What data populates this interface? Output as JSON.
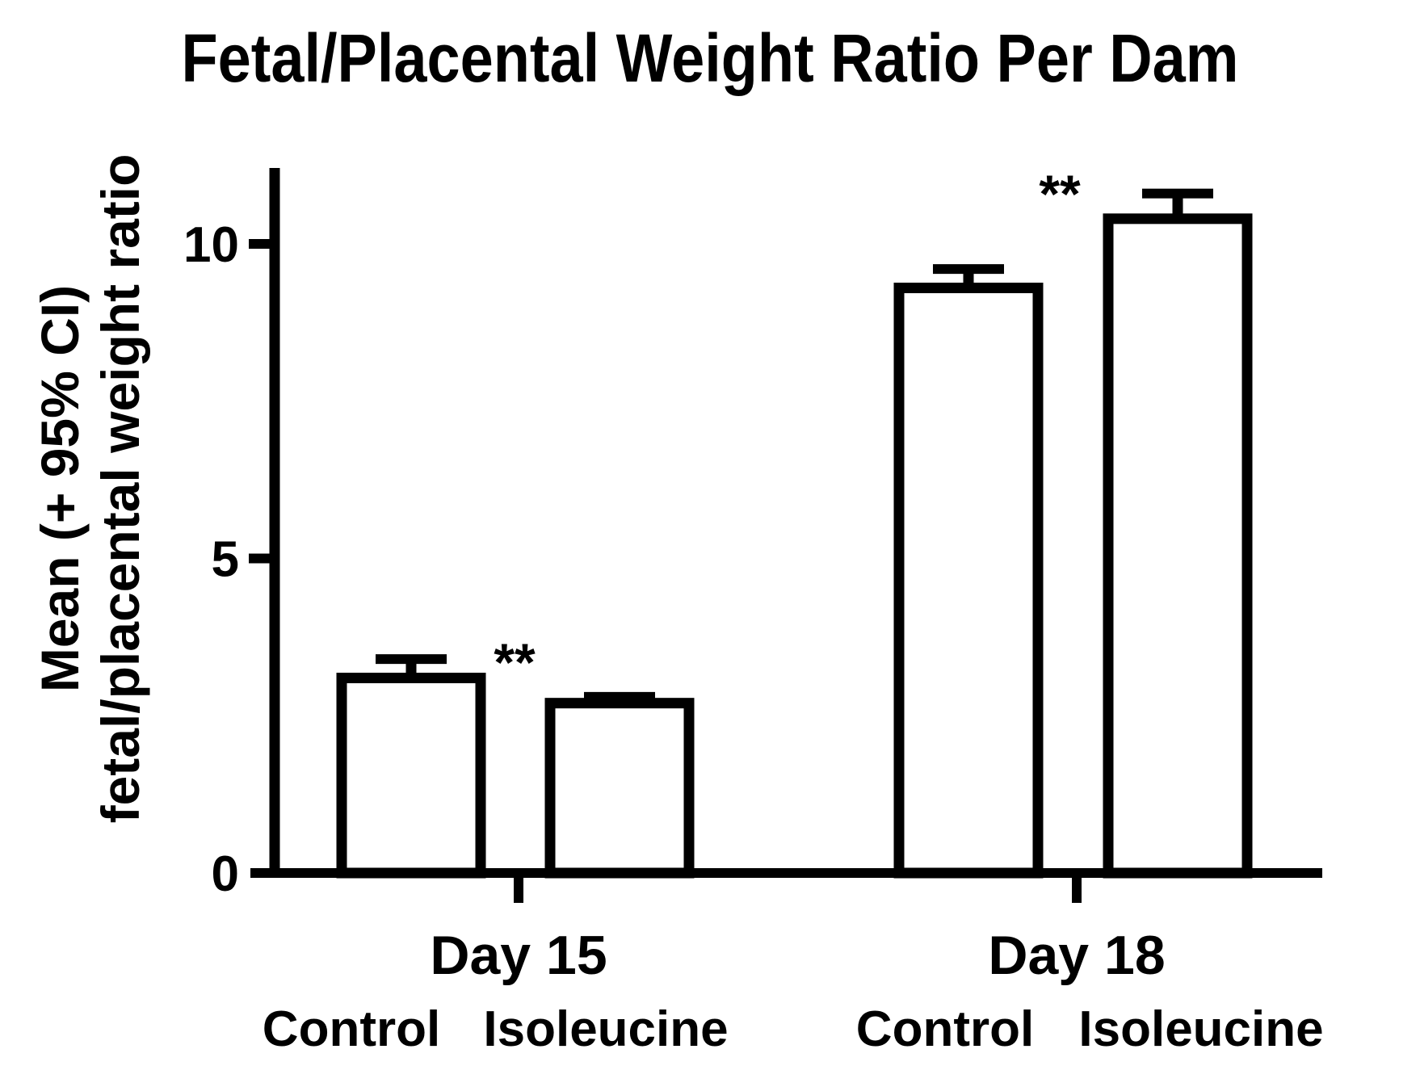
{
  "figure": {
    "title": "Fetal/Placental Weight Ratio Per Dam"
  },
  "y_axis": {
    "label_line1": "Mean (+ 95% CI)",
    "label_line2": "fetal/placental weight ratio"
  },
  "chart_data": {
    "type": "bar",
    "title": "Fetal/Placental Weight Ratio Per Dam",
    "ylabel": "Mean (+ 95% CI) fetal/placental weight ratio",
    "xlabel": "",
    "ylim": [
      0,
      11.2
    ],
    "yticks": [
      0,
      5,
      10
    ],
    "grid": false,
    "legend": "none",
    "bar_fill": "#ffffff",
    "line_color": "#000000",
    "error_bars": "upper 95% CI only, with cap",
    "groups": [
      {
        "label": "Day 15",
        "significance": "**",
        "bars": [
          {
            "label": "Control",
            "mean": 3.1,
            "upper_ci": 3.4
          },
          {
            "label": "Isoleucine",
            "mean": 2.7,
            "upper_ci": 2.8
          }
        ]
      },
      {
        "label": "Day 18",
        "significance": "**",
        "bars": [
          {
            "label": "Control",
            "mean": 9.3,
            "upper_ci": 9.6
          },
          {
            "label": "Isoleucine",
            "mean": 10.4,
            "upper_ci": 10.8
          }
        ]
      }
    ]
  }
}
